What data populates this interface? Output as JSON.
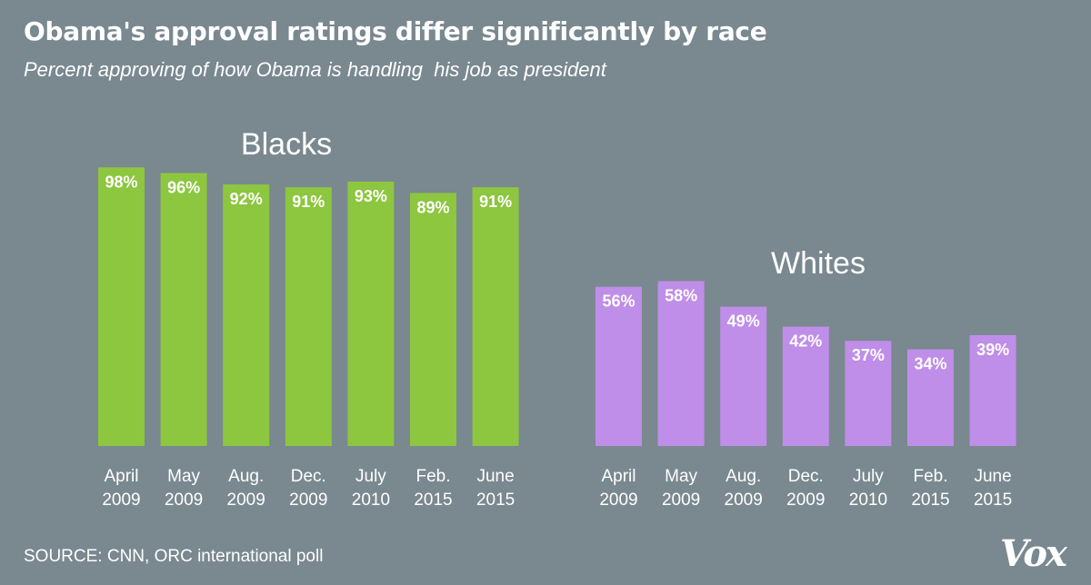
{
  "header": {
    "title": "Obama's approval ratings differ significantly by race",
    "subtitle": "Percent approving of how Obama is handling  his job as president"
  },
  "footer": {
    "source": "SOURCE: CNN, ORC international poll",
    "logo": "Vox"
  },
  "colors": {
    "background": "#7a8890",
    "blacks_bar": "#8dc63f",
    "whites_bar": "#bf8ee8",
    "text": "#ffffff"
  },
  "chart_data": [
    {
      "type": "bar",
      "title": "Blacks",
      "categories": [
        [
          "April",
          "2009"
        ],
        [
          "May",
          "2009"
        ],
        [
          "Aug.",
          "2009"
        ],
        [
          "Dec.",
          "2009"
        ],
        [
          "July",
          "2010"
        ],
        [
          "Feb.",
          "2015"
        ],
        [
          "June",
          "2015"
        ]
      ],
      "values": [
        98,
        96,
        92,
        91,
        93,
        89,
        91
      ],
      "value_labels": [
        "98%",
        "96%",
        "92%",
        "91%",
        "93%",
        "89%",
        "91%"
      ],
      "ylim": [
        0,
        100
      ],
      "color": "#8dc63f",
      "grid": false,
      "legend": "none"
    },
    {
      "type": "bar",
      "title": "Whites",
      "categories": [
        [
          "April",
          "2009"
        ],
        [
          "May",
          "2009"
        ],
        [
          "Aug.",
          "2009"
        ],
        [
          "Dec.",
          "2009"
        ],
        [
          "July",
          "2010"
        ],
        [
          "Feb.",
          "2015"
        ],
        [
          "June",
          "2015"
        ]
      ],
      "values": [
        56,
        58,
        49,
        42,
        37,
        34,
        39
      ],
      "value_labels": [
        "56%",
        "58%",
        "49%",
        "42%",
        "37%",
        "34%",
        "39%"
      ],
      "ylim": [
        0,
        100
      ],
      "color": "#bf8ee8",
      "grid": false,
      "legend": "none"
    }
  ]
}
